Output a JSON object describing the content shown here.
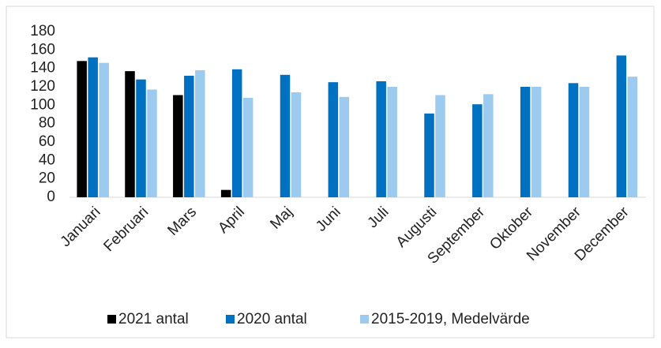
{
  "chart_data": {
    "type": "bar",
    "categories": [
      "Januari",
      "Februari",
      "Mars",
      "April",
      "Maj",
      "Juni",
      "Juli",
      "Augusti",
      "September",
      "Oktober",
      "November",
      "December"
    ],
    "series": [
      {
        "name": "2021 antal",
        "color": "#000000",
        "values": [
          148,
          137,
          111,
          8,
          null,
          null,
          null,
          null,
          null,
          null,
          null,
          null
        ]
      },
      {
        "name": "2020 antal",
        "color": "#0070c0",
        "values": [
          152,
          128,
          132,
          139,
          133,
          125,
          126,
          91,
          101,
          120,
          124,
          154
        ]
      },
      {
        "name": "2015-2019, Medelvärde",
        "color": "#9dcbf0",
        "values": [
          146,
          117,
          138,
          108,
          114,
          109,
          120,
          111,
          112,
          120,
          120,
          131
        ]
      }
    ],
    "ylim": [
      0,
      180
    ],
    "yticks": [
      0,
      20,
      40,
      60,
      80,
      100,
      120,
      140,
      160,
      180
    ],
    "grid": false,
    "legend": "bottom"
  }
}
